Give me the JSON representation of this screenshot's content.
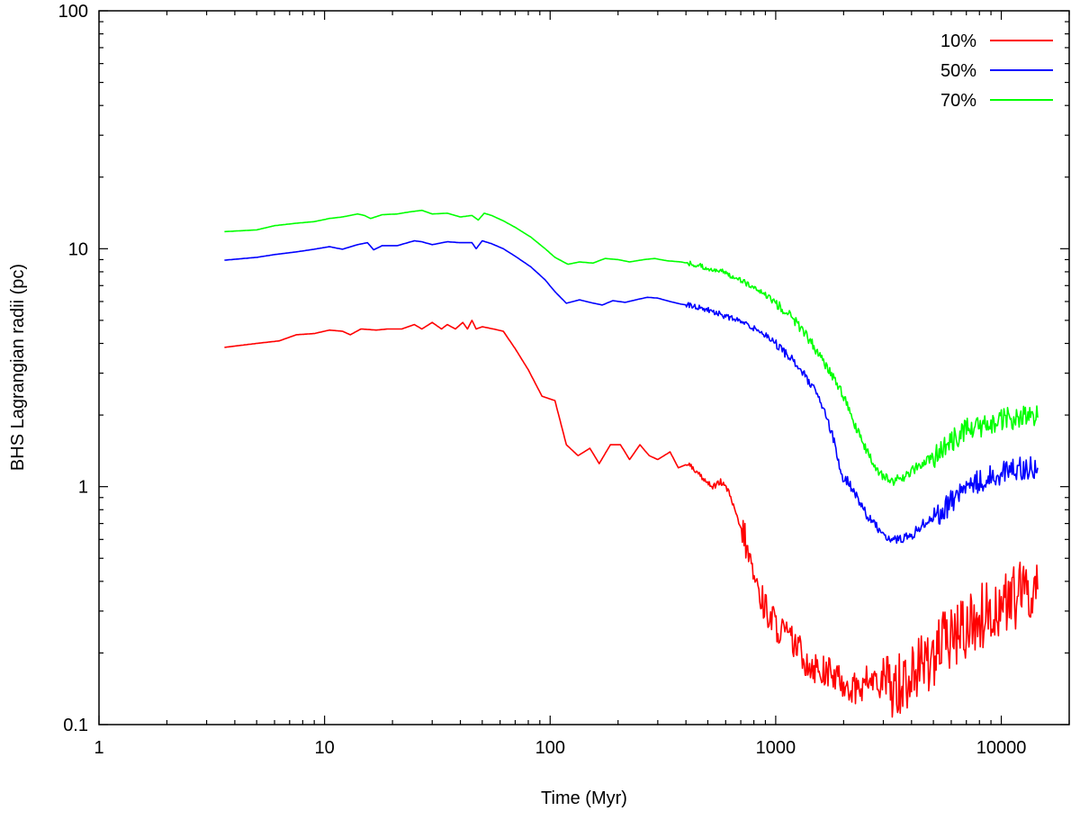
{
  "chart_data": {
    "type": "line",
    "title": "",
    "xlabel": "Time (Myr)",
    "ylabel": "BHS Lagrangian radii (pc)",
    "xscale": "log",
    "yscale": "log",
    "xlim": [
      1,
      20000
    ],
    "ylim": [
      0.1,
      100
    ],
    "x_ticks": [
      1,
      10,
      100,
      1000,
      10000
    ],
    "x_tick_labels": [
      "1",
      "10",
      "100",
      "1000",
      "10000"
    ],
    "y_ticks": [
      0.1,
      1,
      10,
      100
    ],
    "y_tick_labels": [
      "0.1",
      "1",
      "10",
      "100"
    ],
    "grid": false,
    "legend_position": "top-right",
    "series": [
      {
        "name": "10%",
        "color": "#ff0000",
        "points": [
          [
            3.6,
            3.85
          ],
          [
            5,
            4.0
          ],
          [
            6.3,
            4.1
          ],
          [
            7.5,
            4.35
          ],
          [
            9,
            4.4
          ],
          [
            10.5,
            4.55
          ],
          [
            12,
            4.5
          ],
          [
            13,
            4.35
          ],
          [
            14.5,
            4.6
          ],
          [
            17,
            4.55
          ],
          [
            19,
            4.6
          ],
          [
            22,
            4.6
          ],
          [
            25,
            4.8
          ],
          [
            27,
            4.6
          ],
          [
            30,
            4.9
          ],
          [
            33,
            4.6
          ],
          [
            35,
            4.8
          ],
          [
            38,
            4.6
          ],
          [
            41,
            4.9
          ],
          [
            43,
            4.6
          ],
          [
            45,
            5.0
          ],
          [
            47,
            4.6
          ],
          [
            50,
            4.7
          ],
          [
            56,
            4.6
          ],
          [
            62,
            4.5
          ],
          [
            70,
            3.8
          ],
          [
            80,
            3.1
          ],
          [
            92,
            2.4
          ],
          [
            105,
            2.3
          ],
          [
            118,
            1.5
          ],
          [
            133,
            1.35
          ],
          [
            150,
            1.45
          ],
          [
            165,
            1.25
          ],
          [
            185,
            1.5
          ],
          [
            205,
            1.5
          ],
          [
            225,
            1.3
          ],
          [
            250,
            1.5
          ],
          [
            275,
            1.35
          ],
          [
            300,
            1.3
          ],
          [
            340,
            1.4
          ],
          [
            370,
            1.2
          ],
          [
            410,
            1.25
          ],
          [
            450,
            1.15
          ],
          [
            490,
            1.05
          ],
          [
            530,
            1.0
          ],
          [
            570,
            1.05
          ],
          [
            620,
            0.95
          ],
          [
            680,
            0.72
          ],
          [
            730,
            0.6
          ],
          [
            780,
            0.46
          ],
          [
            850,
            0.35
          ],
          [
            950,
            0.28
          ],
          [
            1050,
            0.25
          ],
          [
            1200,
            0.22
          ],
          [
            1400,
            0.18
          ],
          [
            1600,
            0.17
          ],
          [
            1800,
            0.16
          ],
          [
            2000,
            0.15
          ],
          [
            2300,
            0.14
          ],
          [
            2600,
            0.155
          ],
          [
            3000,
            0.145
          ],
          [
            3500,
            0.15
          ],
          [
            4000,
            0.16
          ],
          [
            4500,
            0.18
          ],
          [
            5000,
            0.2
          ],
          [
            6000,
            0.23
          ],
          [
            7000,
            0.26
          ],
          [
            8000,
            0.28
          ],
          [
            9000,
            0.3
          ],
          [
            10000,
            0.32
          ],
          [
            12000,
            0.35
          ],
          [
            14500,
            0.37
          ]
        ]
      },
      {
        "name": "50%",
        "color": "#0000ff",
        "points": [
          [
            3.6,
            8.95
          ],
          [
            5,
            9.2
          ],
          [
            6,
            9.45
          ],
          [
            7.5,
            9.7
          ],
          [
            9,
            9.95
          ],
          [
            10.5,
            10.2
          ],
          [
            12,
            9.95
          ],
          [
            14,
            10.4
          ],
          [
            15.5,
            10.6
          ],
          [
            16.5,
            9.9
          ],
          [
            18,
            10.3
          ],
          [
            21,
            10.3
          ],
          [
            25,
            10.8
          ],
          [
            27,
            10.7
          ],
          [
            30,
            10.4
          ],
          [
            35,
            10.7
          ],
          [
            40,
            10.6
          ],
          [
            45,
            10.6
          ],
          [
            47,
            10.0
          ],
          [
            50,
            10.8
          ],
          [
            55,
            10.5
          ],
          [
            62,
            10.0
          ],
          [
            70,
            9.3
          ],
          [
            82,
            8.4
          ],
          [
            95,
            7.4
          ],
          [
            105,
            6.6
          ],
          [
            118,
            5.9
          ],
          [
            135,
            6.1
          ],
          [
            150,
            5.95
          ],
          [
            170,
            5.8
          ],
          [
            190,
            6.05
          ],
          [
            215,
            5.95
          ],
          [
            240,
            6.1
          ],
          [
            270,
            6.25
          ],
          [
            300,
            6.2
          ],
          [
            340,
            6.0
          ],
          [
            380,
            5.85
          ],
          [
            430,
            5.75
          ],
          [
            480,
            5.6
          ],
          [
            540,
            5.4
          ],
          [
            600,
            5.2
          ],
          [
            680,
            5.0
          ],
          [
            760,
            4.75
          ],
          [
            850,
            4.5
          ],
          [
            950,
            4.2
          ],
          [
            1050,
            3.8
          ],
          [
            1200,
            3.4
          ],
          [
            1350,
            2.9
          ],
          [
            1500,
            2.5
          ],
          [
            1650,
            2.05
          ],
          [
            1800,
            1.6
          ],
          [
            1950,
            1.1
          ],
          [
            2100,
            1.05
          ],
          [
            2300,
            0.9
          ],
          [
            2600,
            0.73
          ],
          [
            2900,
            0.66
          ],
          [
            3200,
            0.6
          ],
          [
            3500,
            0.6
          ],
          [
            4000,
            0.62
          ],
          [
            4500,
            0.7
          ],
          [
            5000,
            0.74
          ],
          [
            5600,
            0.8
          ],
          [
            6200,
            0.9
          ],
          [
            7000,
            1.0
          ],
          [
            8000,
            1.05
          ],
          [
            9000,
            1.1
          ],
          [
            10000,
            1.15
          ],
          [
            12000,
            1.2
          ],
          [
            14500,
            1.2
          ]
        ]
      },
      {
        "name": "70%",
        "color": "#00ff00",
        "points": [
          [
            3.6,
            11.8
          ],
          [
            5,
            12.0
          ],
          [
            6,
            12.5
          ],
          [
            7.5,
            12.8
          ],
          [
            9,
            13.0
          ],
          [
            10.5,
            13.4
          ],
          [
            12,
            13.6
          ],
          [
            14,
            14.0
          ],
          [
            15,
            13.8
          ],
          [
            16,
            13.4
          ],
          [
            18,
            13.9
          ],
          [
            21,
            14.0
          ],
          [
            24,
            14.3
          ],
          [
            27,
            14.5
          ],
          [
            30,
            14.0
          ],
          [
            35,
            14.1
          ],
          [
            40,
            13.6
          ],
          [
            45,
            13.8
          ],
          [
            48,
            13.2
          ],
          [
            51,
            14.1
          ],
          [
            55,
            13.8
          ],
          [
            62,
            13.1
          ],
          [
            70,
            12.3
          ],
          [
            82,
            11.2
          ],
          [
            95,
            10.0
          ],
          [
            105,
            9.2
          ],
          [
            120,
            8.6
          ],
          [
            135,
            8.8
          ],
          [
            155,
            8.7
          ],
          [
            175,
            9.1
          ],
          [
            200,
            9.0
          ],
          [
            225,
            8.8
          ],
          [
            260,
            9.0
          ],
          [
            290,
            9.1
          ],
          [
            330,
            8.9
          ],
          [
            380,
            8.8
          ],
          [
            430,
            8.6
          ],
          [
            490,
            8.3
          ],
          [
            560,
            8.1
          ],
          [
            640,
            7.7
          ],
          [
            720,
            7.3
          ],
          [
            800,
            6.8
          ],
          [
            900,
            6.4
          ],
          [
            1000,
            5.9
          ],
          [
            1150,
            5.3
          ],
          [
            1300,
            4.6
          ],
          [
            1450,
            4.0
          ],
          [
            1600,
            3.4
          ],
          [
            1800,
            2.9
          ],
          [
            2000,
            2.4
          ],
          [
            2200,
            1.9
          ],
          [
            2450,
            1.5
          ],
          [
            2700,
            1.25
          ],
          [
            3000,
            1.1
          ],
          [
            3300,
            1.05
          ],
          [
            3700,
            1.1
          ],
          [
            4200,
            1.2
          ],
          [
            4800,
            1.3
          ],
          [
            5500,
            1.42
          ],
          [
            6200,
            1.6
          ],
          [
            7000,
            1.75
          ],
          [
            8000,
            1.78
          ],
          [
            9000,
            1.8
          ],
          [
            10000,
            1.9
          ],
          [
            12000,
            1.95
          ],
          [
            14500,
            1.95
          ]
        ]
      }
    ]
  }
}
